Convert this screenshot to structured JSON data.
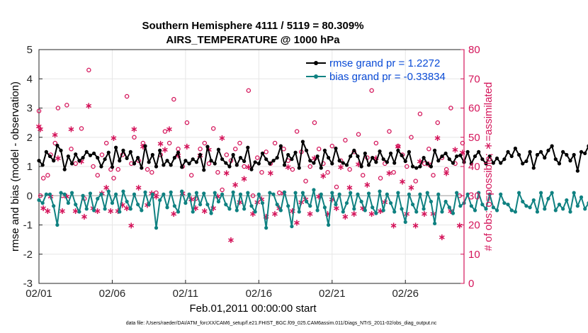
{
  "chart_data": {
    "type": "line",
    "title": "Southern Hemisphere 4111 / 5119 = 80.309%",
    "subtitle": "AIRS_TEMPERATURE @ 1000 hPa",
    "xlabel": "Feb.01,2011 00:00:00 start",
    "ylabel_left": "rmse and bias (model - observation)",
    "ylabel_right": "# of obs: o=possible; ∗=assimilated",
    "xlim": [
      0,
      29
    ],
    "ylim_left": [
      -3,
      5
    ],
    "ylim_right": [
      0,
      80
    ],
    "x_ticks": [
      0,
      5,
      10,
      15,
      20,
      25
    ],
    "x_tick_labels": [
      "02/01",
      "02/06",
      "02/11",
      "02/16",
      "02/21",
      "02/26"
    ],
    "y_ticks_left": [
      -3,
      -2,
      -1,
      0,
      1,
      2,
      3,
      4,
      5
    ],
    "y_tick_labels_left": [
      "-3",
      "-2",
      "-1",
      "0",
      "1",
      "2",
      "3",
      "4",
      "5"
    ],
    "y_ticks_right": [
      0,
      10,
      20,
      30,
      40,
      50,
      60,
      70,
      80
    ],
    "y_tick_labels_right": [
      "0",
      "10",
      "20",
      "30",
      "40",
      "50",
      "60",
      "70",
      "80"
    ],
    "grid": true,
    "legend_position": "top-right",
    "zero_line": 0,
    "colors": {
      "rmse": "#000000",
      "bias": "#0f8181",
      "obs": "#d4145a",
      "legend_text": "#0a4bd6",
      "right_axis": "#d4145a",
      "grid": "#e6e6e6",
      "zero_line": "#bbbbbb"
    },
    "series": [
      {
        "name": "rmse grand pr = 1.2272",
        "axis": "left",
        "step": 0.25,
        "values": [
          1.2,
          1.05,
          1.5,
          1.35,
          1.2,
          1.72,
          1.55,
          0.9,
          1.35,
          1.1,
          1.42,
          1.2,
          1.3,
          1.5,
          1.38,
          1.45,
          1.3,
          1.0,
          1.25,
          1.48,
          0.98,
          1.65,
          1.2,
          1.55,
          1.28,
          1.5,
          1.1,
          1.3,
          0.95,
          1.7,
          1.15,
          1.4,
          1.0,
          1.55,
          1.05,
          1.2,
          1.05,
          1.3,
          1.48,
          0.98,
          1.2,
          1.1,
          1.25,
          1.15,
          1.4,
          0.88,
          1.68,
          1.2,
          1.1,
          1.58,
          1.25,
          1.12,
          1.0,
          1.4,
          1.05,
          1.3,
          1.18,
          1.65,
          0.9,
          1.15,
          1.1,
          1.45,
          1.25,
          1.1,
          1.2,
          1.3,
          1.7,
          1.05,
          1.4,
          1.25,
          1.48,
          0.95,
          1.85,
          1.55,
          1.2,
          1.12,
          1.35,
          0.95,
          1.55,
          1.3,
          1.1,
          1.62,
          1.2,
          1.12,
          1.05,
          1.35,
          1.55,
          1.35,
          1.0,
          1.45,
          1.05,
          1.3,
          1.15,
          1.52,
          1.25,
          1.15,
          1.45,
          1.12,
          1.55,
          1.38,
          1.18,
          1.5,
          1.0,
          0.95,
          1.0,
          1.3,
          1.1,
          1.0,
          1.55,
          1.2,
          1.35,
          1.45,
          1.25,
          1.12,
          1.35,
          1.38,
          1.15,
          1.5,
          1.1,
          1.35,
          1.5,
          1.25,
          1.1,
          1.35,
          1.12,
          1.28,
          1.12,
          1.25,
          1.5,
          1.35,
          1.62,
          1.4,
          1.1,
          1.18,
          1.5,
          0.95,
          1.4,
          1.5,
          1.3,
          1.55,
          1.7,
          1.25,
          1.1,
          1.5,
          1.4,
          1.2,
          1.4,
          0.85,
          1.5,
          1.45,
          1.7,
          1.5,
          1.15,
          1.3,
          1.1,
          0.95,
          1.3,
          1.45,
          1.1,
          1.5,
          1.85,
          1.65,
          1.25,
          1.35,
          1.75,
          1.3,
          1.55,
          1.6,
          1.25,
          1.45,
          1.8,
          1.7,
          1.55,
          1.35,
          1.65,
          1.25,
          1.2,
          1.1,
          1.55,
          1.25,
          1.65,
          1.15,
          1.45,
          1.3,
          1.6,
          1.2,
          1.35,
          1.25,
          1.45,
          1.1,
          1.25,
          1.55,
          1.35,
          1.5,
          1.35,
          1.2,
          1.45,
          1.15,
          1.35,
          1.55,
          1.4,
          1.3,
          1.2,
          1.35,
          1.05,
          1.5,
          1.15,
          1.45,
          1.3,
          1.6,
          1.35,
          1.3,
          1.2,
          1.55,
          1.4,
          1.25,
          1.15,
          1.3,
          1.2,
          1.05,
          1.25,
          1.4,
          1.55,
          1.25,
          1.2,
          1.45,
          1.3,
          1.15,
          1.2,
          0.95,
          1.3,
          1.45,
          1.2,
          1.35,
          0.9,
          1.3,
          1.25,
          1.45,
          2.05,
          1.85,
          1.4,
          1.75,
          1.55,
          1.7,
          1.45,
          1.6,
          1.35,
          1.65,
          1.75,
          1.6,
          1.55,
          1.35,
          1.5,
          1.8,
          1.65,
          1.45,
          1.25,
          1.45,
          1.35,
          1.55,
          1.15,
          1.25,
          1.2,
          1.1,
          1.35,
          1.55,
          1.85,
          1.3,
          1.7,
          1.55,
          1.6,
          1.3,
          1.4,
          1.25,
          1.55,
          1.45,
          1.3,
          1.65,
          1.4,
          1.55,
          1.25,
          1.75,
          1.4,
          1.55,
          1.35,
          1.2,
          1.4,
          1.15,
          1.3,
          1.2,
          1.35,
          1.1,
          1.45,
          1.2,
          1.4,
          1.35,
          1.55,
          1.2,
          1.45,
          1.3,
          1.25,
          1.35,
          1.45,
          1.25,
          1.4,
          1.5,
          1.3,
          1.45,
          1.3,
          1.15,
          1.35,
          1.1,
          2.05,
          1.8,
          1.3,
          1.45,
          1.72
        ]
      },
      {
        "name": "bias grand pr = -0.33834",
        "axis": "left",
        "step": 0.25,
        "values": [
          -0.15,
          -0.25,
          0.05,
          0.05,
          -0.35,
          -1.0,
          0.1,
          0.05,
          -0.25,
          0.1,
          -0.3,
          -0.55,
          0.0,
          -0.45,
          0.08,
          -0.5,
          -0.1,
          0.05,
          -0.45,
          0.15,
          -0.25,
          0.05,
          -0.55,
          0.15,
          -0.2,
          -0.45,
          0.05,
          -0.3,
          -0.5,
          0.12,
          -0.3,
          0.05,
          -1.1,
          -0.15,
          0.05,
          -0.4,
          0.12,
          -0.35,
          -0.55,
          0.15,
          -0.25,
          0.05,
          -0.55,
          0.1,
          -0.3,
          0.08,
          -0.3,
          -0.6,
          0.1,
          -0.2,
          0.05,
          -0.3,
          -0.45,
          0.12,
          -0.5,
          0.05,
          -0.45,
          0.1,
          -0.35,
          -0.55,
          0.05,
          -0.25,
          -1.1,
          0.1,
          0.05,
          -0.3,
          -0.5,
          0.12,
          -0.35,
          -1.05,
          0.1,
          -0.55,
          0.1,
          -0.2,
          -0.35,
          0.2,
          -0.5,
          0.05,
          -0.4,
          -1.0,
          0.1,
          -0.3,
          0.05,
          -0.55,
          -0.25,
          0.1,
          -0.45,
          0.05,
          -0.2,
          -0.5,
          0.08,
          -0.4,
          -0.6,
          0.15,
          -0.5,
          0.05,
          -0.25,
          -0.55,
          0.1,
          -0.45,
          -0.9,
          0.05,
          -0.3,
          -0.55,
          0.05,
          -0.45,
          0.1,
          -0.2,
          -0.95,
          0.05,
          -0.55,
          -0.2,
          -0.4,
          -0.6,
          0.1,
          -0.35,
          -0.25,
          0.05,
          -0.35,
          -0.5,
          0.1,
          -0.3,
          -0.45,
          0.05,
          -0.4,
          -0.5,
          0.05,
          -0.25,
          -0.3,
          -0.5,
          -0.55,
          0.1,
          -0.2,
          -0.35,
          -0.4,
          -0.15,
          -0.55,
          0.1,
          -0.45,
          -0.1,
          0.1,
          -0.5,
          -0.3,
          -0.45,
          -0.15,
          -0.55,
          0.1,
          -0.35,
          -0.05,
          -0.45,
          -0.25,
          0.05,
          -0.5,
          -0.35,
          0.1,
          -0.5,
          -0.45,
          -0.2,
          -0.6,
          0.05,
          -0.55,
          -0.45,
          -0.3,
          -0.15,
          -0.5,
          -0.7,
          -0.2,
          -0.45,
          -0.55,
          -0.35,
          -0.1,
          -0.5,
          -0.65,
          -0.4,
          -0.3,
          -0.55,
          -0.65,
          -0.4,
          -0.45,
          -0.65,
          -0.45,
          -0.7,
          -1.05,
          -0.55,
          -0.4,
          -0.45,
          -0.55,
          -0.25,
          -0.45,
          -0.15,
          -0.55,
          -0.35,
          -0.6,
          -0.45,
          -0.35,
          -0.5,
          -0.25,
          -0.55,
          -0.4,
          -0.5,
          -0.3,
          -0.55,
          -0.45,
          -0.35,
          -0.5,
          -0.25,
          -0.45,
          -0.35,
          -0.3,
          -0.55,
          -0.15,
          -0.45,
          -0.5,
          -0.3,
          -0.55,
          -0.2,
          -0.5,
          -0.4,
          -0.35,
          -0.55,
          -0.25,
          -0.5,
          -0.45,
          -0.3,
          -0.55,
          -0.2,
          -0.6,
          -0.35,
          -0.5,
          -0.1,
          -0.4,
          -0.55,
          -0.45,
          -0.3,
          -0.6,
          -0.2,
          -0.55,
          -0.35,
          -0.5,
          -0.9,
          -1.1,
          -0.5,
          -1.3,
          -1.05,
          -0.85,
          -0.8,
          -0.5,
          -0.3,
          -0.8,
          -0.55,
          -0.45,
          -0.6,
          -0.5,
          -0.4,
          -0.65,
          -0.45,
          -0.55,
          -0.35,
          -0.5,
          -0.6,
          -0.45,
          -0.55,
          -0.3,
          -0.5,
          -0.4,
          -0.6,
          -0.45,
          -0.7,
          -0.5,
          -0.55,
          -0.35,
          -0.5,
          -0.4,
          -0.65,
          -0.45,
          -0.55,
          -0.35,
          -0.6,
          -0.5,
          -0.4,
          -0.55,
          -0.45,
          -0.6,
          -0.35,
          -0.5,
          -0.45,
          -0.55,
          -0.4,
          -0.6,
          -0.5,
          -0.45,
          -0.55,
          -0.35,
          -0.5,
          -0.6,
          -0.45,
          -0.5,
          -0.4,
          -0.55,
          -0.45,
          -0.5,
          -0.6,
          -0.4,
          -0.55,
          -0.45,
          -0.5,
          -0.35,
          -0.6,
          -0.5,
          -0.45,
          -0.55,
          -0.4,
          -0.5,
          -0.6,
          -0.45,
          -0.55,
          -0.35,
          -0.5,
          -0.45,
          -0.55,
          -0.6,
          -0.4,
          -0.5,
          -0.45,
          -0.55,
          -0.4,
          -0.35,
          -1.3,
          -0.9,
          -0.95,
          -1.35,
          -1.4
        ]
      },
      {
        "name": "# possible (o)",
        "axis": "right",
        "x": [
          0.0,
          0.1,
          0.3,
          0.6,
          0.8,
          1.1,
          1.3,
          1.6,
          1.9,
          2.2,
          2.5,
          2.9,
          3.1,
          3.4,
          3.7,
          4.0,
          4.3,
          4.6,
          4.9,
          5.1,
          5.4,
          5.7,
          6.0,
          6.3,
          6.5,
          6.8,
          7.1,
          7.4,
          7.7,
          8.0,
          8.3,
          8.6,
          8.9,
          9.2,
          9.5,
          9.8,
          10.1,
          10.4,
          10.7,
          11.0,
          11.3,
          11.6,
          11.9,
          12.2,
          12.5,
          12.8,
          13.1,
          13.4,
          13.7,
          14.0,
          14.3,
          14.6,
          14.9,
          15.2,
          15.5,
          15.8,
          16.1,
          16.4,
          16.7,
          17.0,
          17.3,
          17.6,
          17.9,
          18.2,
          18.5,
          18.8,
          19.1,
          19.4,
          19.7,
          20.0,
          20.3,
          20.6,
          20.9,
          21.2,
          21.5,
          21.8,
          22.1,
          22.4,
          22.7,
          23.0,
          23.3,
          23.6,
          23.9,
          24.2,
          24.5,
          24.8,
          25.1,
          25.4,
          25.7,
          26.0,
          26.3,
          26.6,
          26.9,
          27.2,
          27.5,
          27.8,
          28.1,
          28.4,
          28.7,
          28.9
        ],
        "values": [
          59,
          30,
          36,
          37,
          44,
          48,
          60,
          30,
          61,
          46,
          41,
          53,
          29,
          73,
          40,
          37,
          44,
          48,
          39,
          36,
          39,
          44,
          64,
          41,
          50,
          42,
          48,
          39,
          38,
          31,
          44,
          52,
          48,
          63,
          46,
          40,
          55,
          37,
          29,
          46,
          48,
          41,
          53,
          38,
          32,
          44,
          42,
          46,
          48,
          40,
          66,
          30,
          43,
          38,
          45,
          41,
          48,
          31,
          46,
          42,
          39,
          52,
          45,
          35,
          40,
          55,
          46,
          41,
          38,
          47,
          33,
          42,
          49,
          39,
          45,
          51,
          37,
          43,
          66,
          48,
          36,
          41,
          52,
          38,
          47,
          44,
          40,
          50,
          35,
          58,
          41,
          46,
          37,
          55,
          43,
          39,
          60,
          41,
          30,
          48
        ]
      },
      {
        "name": "# assimilated (∗)",
        "axis": "right",
        "x": [
          0.0,
          0.1,
          0.3,
          0.6,
          0.8,
          1.1,
          1.3,
          1.6,
          1.9,
          2.2,
          2.5,
          2.9,
          3.1,
          3.4,
          3.7,
          4.0,
          4.3,
          4.6,
          4.9,
          5.1,
          5.4,
          5.7,
          6.0,
          6.3,
          6.5,
          6.8,
          7.1,
          7.4,
          7.7,
          8.0,
          8.3,
          8.6,
          8.9,
          9.2,
          9.5,
          9.8,
          10.1,
          10.4,
          10.7,
          11.0,
          11.3,
          11.6,
          11.9,
          12.2,
          12.5,
          12.8,
          13.1,
          13.4,
          13.7,
          14.0,
          14.3,
          14.6,
          14.9,
          15.2,
          15.5,
          15.8,
          16.1,
          16.4,
          16.7,
          17.0,
          17.3,
          17.6,
          17.9,
          18.2,
          18.5,
          18.8,
          19.1,
          19.4,
          19.7,
          20.0,
          20.3,
          20.6,
          20.9,
          21.2,
          21.5,
          21.8,
          22.1,
          22.4,
          22.7,
          23.0,
          23.3,
          23.6,
          23.9,
          24.2,
          24.5,
          24.8,
          25.1,
          25.4,
          25.7,
          26.0,
          26.3,
          26.6,
          26.9,
          27.2,
          27.5,
          27.8,
          28.1,
          28.4,
          28.7,
          28.9
        ],
        "values": [
          54,
          53,
          26,
          25,
          30,
          51,
          43,
          25,
          30,
          53,
          25,
          42,
          23,
          61,
          26,
          25,
          31,
          33,
          25,
          50,
          25,
          27,
          26,
          20,
          53,
          33,
          47,
          27,
          31,
          30,
          48,
          46,
          53,
          24,
          44,
          31,
          47,
          29,
          26,
          44,
          25,
          46,
          26,
          30,
          50,
          38,
          15,
          34,
          28,
          36,
          40,
          24,
          28,
          29,
          23,
          38,
          24,
          26,
          31,
          40,
          25,
          21,
          28,
          29,
          24,
          43,
          30,
          37,
          24,
          29,
          26,
          40,
          23,
          33,
          24,
          41,
          26,
          34,
          24,
          43,
          25,
          28,
          38,
          20,
          47,
          35,
          24,
          33,
          20,
          42,
          24,
          41,
          24,
          50,
          16,
          38,
          25,
          46,
          20,
          45
        ]
      }
    ],
    "footnote": "data file: /Users/raeder/DAI/ATM_forcXX/CAM6_setup/f.e21.FHIST_BGC.f09_025.CAM6assim.011/Diags_NTrS_2011-02/obs_diag_output.nc"
  }
}
